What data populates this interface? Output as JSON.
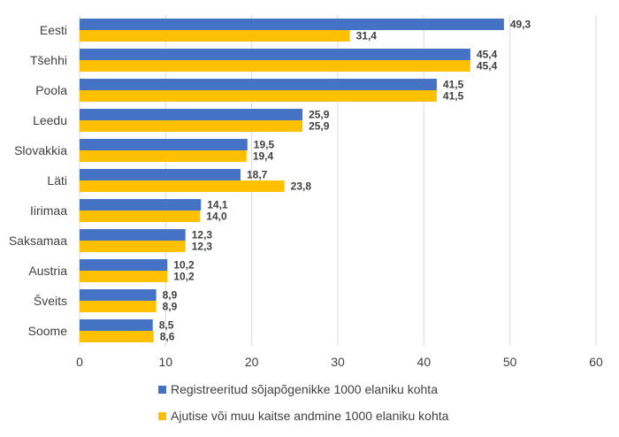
{
  "chart_data": {
    "type": "bar",
    "orientation": "horizontal",
    "categories": [
      "Eesti",
      "Tšehhi",
      "Poola",
      "Leedu",
      "Slovakkia",
      "Läti",
      "Iirimaa",
      "Saksamaa",
      "Austria",
      "Šveits",
      "Soome"
    ],
    "series": [
      {
        "name": "Registreeritud sõjapõgenikke 1000 elaniku kohta",
        "color": "#4472c4",
        "values": [
          49.3,
          45.4,
          41.5,
          25.9,
          19.5,
          18.7,
          14.1,
          12.3,
          10.2,
          8.9,
          8.5
        ],
        "labels": [
          "49,3",
          "45,4",
          "41,5",
          "25,9",
          "19,5",
          "18,7",
          "14,1",
          "12,3",
          "10,2",
          "8,9",
          "8,5"
        ]
      },
      {
        "name": "Ajutise või muu kaitse andmine 1000 elaniku kohta",
        "color": "#ffc000",
        "values": [
          31.4,
          45.4,
          41.5,
          25.9,
          19.4,
          23.8,
          14.0,
          12.3,
          10.2,
          8.9,
          8.6
        ],
        "labels": [
          "31,4",
          "45,4",
          "41,5",
          "25,9",
          "19,4",
          "23,8",
          "14,0",
          "12,3",
          "10,2",
          "8,9",
          "8,6"
        ]
      }
    ],
    "x_ticks": [
      0,
      10,
      20,
      30,
      40,
      50,
      60
    ],
    "xlim": [
      0,
      60
    ],
    "grid": true,
    "legend_position": "bottom"
  }
}
